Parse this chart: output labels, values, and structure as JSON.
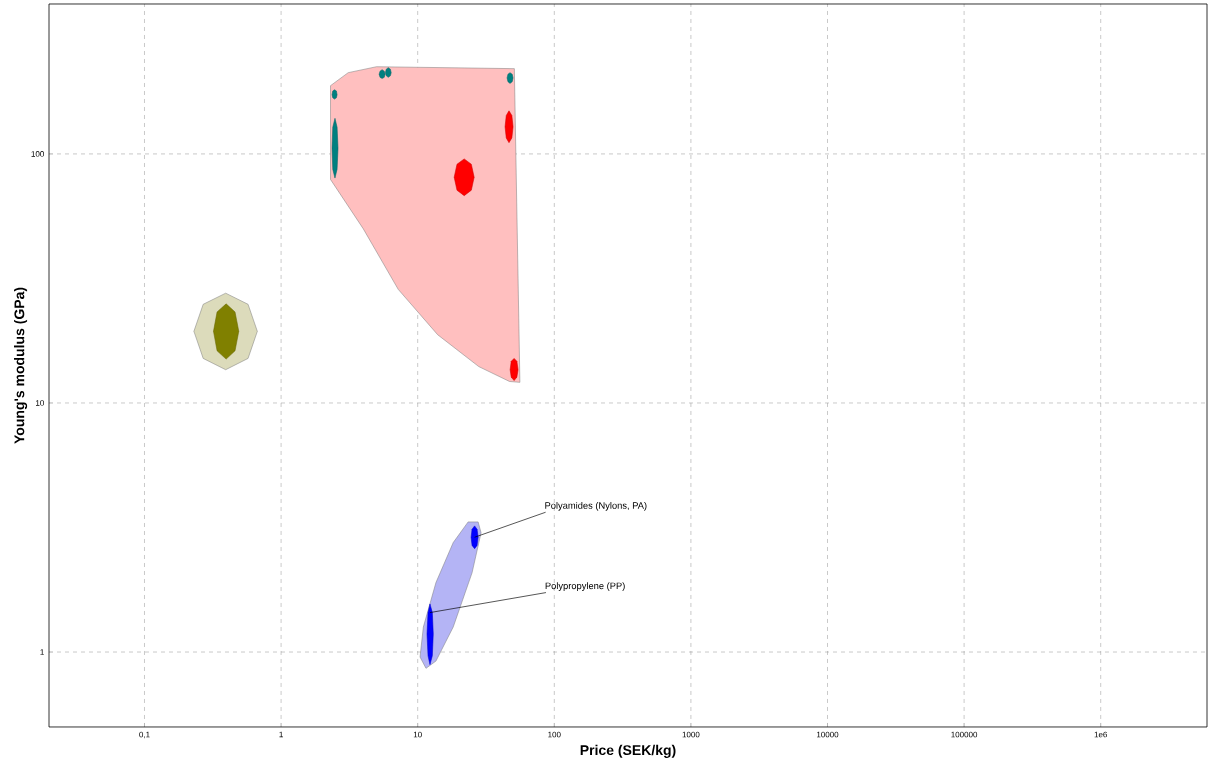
{
  "chart_data": {
    "type": "area",
    "xlabel": "Price (SEK/kg)",
    "ylabel": "Young's modulus (GPa)",
    "log": "xy",
    "grid": true,
    "xlim": [
      0.02,
      6000000
    ],
    "ylim": [
      0.5,
      400
    ],
    "xticks": [
      {
        "value": 0.1,
        "label": "0,1"
      },
      1,
      10,
      100,
      1000,
      10000,
      100000,
      {
        "value": 1000000,
        "label": "1e6"
      }
    ],
    "yticks": [
      1,
      10,
      100
    ],
    "series": [
      {
        "color": "#ffbfbf",
        "x": [
          2.3,
          2.3,
          3.1,
          5,
          51,
          56,
          47,
          28,
          14,
          7.2,
          4
        ],
        "values": [
          79,
          188,
          212,
          224,
          220,
          12.1,
          12.2,
          14,
          18.8,
          28.6,
          50
        ]
      },
      {
        "color": "#b4b4f5",
        "x": [
          11.5,
          13.6,
          18.2,
          25,
          29.1,
          27.7,
          23.4,
          18.2,
          13.6,
          11,
          10.4
        ],
        "values": [
          0.86,
          0.92,
          1.26,
          2.08,
          3.01,
          3.33,
          3.33,
          2.75,
          1.9,
          1.26,
          0.955
        ]
      },
      {
        "color": "#dcdbbb",
        "x": [
          0.67,
          0.573,
          0.393,
          0.269,
          0.23,
          0.269,
          0.393,
          0.573
        ],
        "values": [
          19.4,
          24.9,
          27.6,
          24.9,
          19.4,
          15.1,
          13.6,
          15.1
        ]
      },
      {
        "color": "#808000",
        "x": [
          0.49,
          0.46,
          0.396,
          0.34,
          0.32,
          0.34,
          0.396,
          0.46
        ],
        "values": [
          19.4,
          23.2,
          25,
          23.2,
          19.4,
          16.2,
          15,
          16.2
        ]
      },
      {
        "color": "#008080",
        "x": [
          2.57,
          2.54,
          2.46,
          2.39,
          2.36,
          2.39,
          2.46,
          2.54,
          null,
          5.77,
          5.69,
          5.49,
          5.3,
          5.22,
          5.3,
          5.49,
          5.69,
          null,
          6.4,
          6.31,
          6.09,
          5.89,
          5.8,
          5.89,
          6.09,
          6.31,
          null,
          49.9,
          49.2,
          47.4,
          45.8,
          45.1,
          45.8,
          47.4,
          49.2,
          null,
          2.61,
          2.57,
          2.48,
          2.39,
          2.36,
          2.39,
          2.48,
          2.57
        ],
        "values": [
          173,
          179,
          181,
          179,
          173,
          168,
          166,
          168,
          null,
          209,
          215,
          218,
          215,
          209,
          203,
          201,
          203,
          null,
          212,
          219,
          222,
          219,
          212,
          206,
          203,
          206,
          null,
          202,
          209,
          212,
          209,
          202,
          195,
          192,
          195,
          null,
          105.5,
          128,
          139,
          128,
          105.5,
          86.8,
          80,
          86.8
        ]
      },
      {
        "color": "#ff0000",
        "x": [
          25.9,
          24.7,
          21.9,
          19.4,
          18.5,
          19.4,
          21.9,
          24.7,
          null,
          49.9,
          48.9,
          46.6,
          44.5,
          43.6,
          44.5,
          46.6,
          48.9,
          null,
          54.3,
          53.2,
          50.8,
          48.4,
          47.5,
          48.4,
          50.8,
          53.2
        ],
        "values": [
          80.6,
          90.9,
          95.5,
          90.9,
          80.6,
          71.5,
          68,
          71.5,
          null,
          128.6,
          142.7,
          149,
          142.7,
          128.6,
          115.9,
          111,
          115.9,
          null,
          13.6,
          14.7,
          15.1,
          14.7,
          13.6,
          12.7,
          12.3,
          12.7
        ]
      },
      {
        "color": "#0000ff",
        "x": [
          13.0,
          12.8,
          12.3,
          11.9,
          11.7,
          11.9,
          12.3,
          12.8,
          null,
          27.7,
          27.2,
          26.1,
          25.0,
          24.6,
          25.0,
          26.1,
          27.2
        ],
        "values": [
          1.18,
          1.44,
          1.56,
          1.44,
          1.18,
          0.966,
          0.89,
          0.966,
          null,
          2.89,
          3.11,
          3.21,
          3.11,
          2.89,
          2.68,
          2.6,
          2.68
        ]
      }
    ],
    "annotations": [
      {
        "text": "Polyamides (Nylons, PA)",
        "x": 26.1,
        "y": 2.89
      },
      {
        "text": "Polypropylene (PP)",
        "x": 12.3,
        "y": 1.44
      }
    ]
  }
}
